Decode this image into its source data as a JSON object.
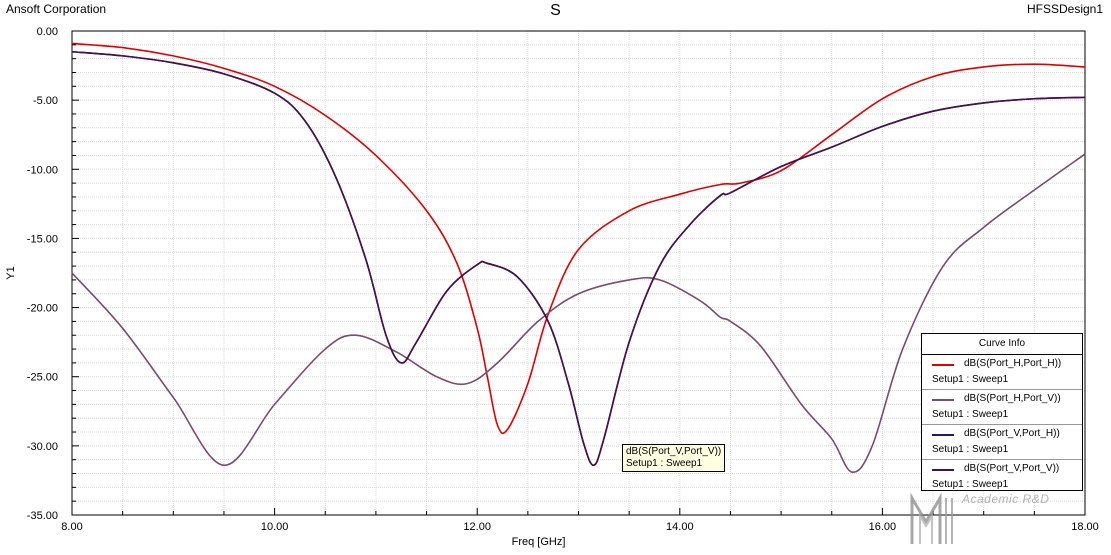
{
  "header": {
    "company": "Ansoft Corporation",
    "title": "S",
    "project": "HFSSDesign1"
  },
  "chart_data": {
    "type": "line",
    "title": "S",
    "xlabel": "Freq [GHz]",
    "ylabel": "Y1",
    "xlim": [
      8.0,
      18.0
    ],
    "ylim": [
      -35.0,
      0.0
    ],
    "x_ticks": [
      "8.00",
      "10.00",
      "12.00",
      "14.00",
      "16.00",
      "18.00"
    ],
    "y_ticks": [
      "0.00",
      "-5.00",
      "-10.00",
      "-15.00",
      "-20.00",
      "-25.00",
      "-30.00",
      "-35.00"
    ],
    "grid": true,
    "legend_placement": "bottom-right",
    "series": [
      {
        "name": "dB(S(Port_H,Port_H))",
        "setup": "Setup1 : Sweep1",
        "color": "#e00000",
        "x": [
          8.0,
          8.5,
          9.0,
          9.5,
          10.0,
          10.5,
          11.0,
          11.5,
          11.8,
          12.0,
          12.1,
          12.2,
          12.3,
          12.5,
          12.7,
          13.0,
          13.5,
          14.0,
          14.4,
          14.6,
          15.0,
          15.5,
          16.0,
          16.5,
          17.0,
          17.5,
          18.0
        ],
        "y": [
          -0.9,
          -1.2,
          -1.8,
          -2.7,
          -4.0,
          -6.1,
          -9.0,
          -13.0,
          -16.8,
          -21.5,
          -25.0,
          -28.5,
          -28.8,
          -25.5,
          -20.5,
          -15.8,
          -13.0,
          -11.8,
          -11.1,
          -11.0,
          -10.1,
          -7.5,
          -4.9,
          -3.3,
          -2.6,
          -2.4,
          -2.6
        ]
      },
      {
        "name": "dB(S(Port_H,Port_V))",
        "setup": "Setup1 : Sweep1",
        "color": "#7a4a6f",
        "x": [
          8.0,
          8.5,
          9.0,
          9.5,
          10.0,
          10.5,
          10.8,
          11.2,
          11.6,
          11.9,
          12.2,
          12.6,
          13.0,
          13.5,
          13.8,
          14.2,
          14.4,
          14.5,
          14.8,
          15.2,
          15.5,
          15.7,
          15.9,
          16.2,
          16.6,
          17.0,
          17.5,
          18.0
        ],
        "y": [
          -17.5,
          -21.5,
          -26.5,
          -31.4,
          -27.0,
          -23.0,
          -22.0,
          -23.2,
          -25.0,
          -25.5,
          -24.0,
          -21.0,
          -19.0,
          -18.0,
          -18.0,
          -19.5,
          -20.7,
          -21.0,
          -22.8,
          -27.0,
          -29.5,
          -31.9,
          -30.0,
          -23.0,
          -17.0,
          -14.2,
          -11.5,
          -8.9
        ]
      },
      {
        "name": "dB(S(Port_V,Port_H))",
        "setup": "Setup1 : Sweep1",
        "color": "#1a1a70",
        "x": [
          8.0,
          8.5,
          9.0,
          9.5,
          10.0,
          10.3,
          10.6,
          10.9,
          11.1,
          11.25,
          11.4,
          11.7,
          12.0,
          12.1,
          12.4,
          12.7,
          12.9,
          13.05,
          13.15,
          13.25,
          13.5,
          13.8,
          14.1,
          14.4,
          14.5,
          15.0,
          15.5,
          16.0,
          16.5,
          17.0,
          17.5,
          18.0
        ],
        "y": [
          -1.5,
          -1.8,
          -2.3,
          -3.1,
          -4.5,
          -6.5,
          -10.5,
          -16.5,
          -22.0,
          -24.0,
          -22.5,
          -18.8,
          -16.9,
          -16.8,
          -17.8,
          -21.0,
          -25.5,
          -29.8,
          -31.4,
          -29.5,
          -22.5,
          -17.0,
          -14.0,
          -11.9,
          -11.7,
          -9.8,
          -8.4,
          -6.9,
          -5.8,
          -5.2,
          -4.9,
          -4.8
        ]
      },
      {
        "name": "dB(S(Port_V,Port_V))",
        "setup": "Setup1 : Sweep1",
        "color": "#4a0f4a",
        "x": [
          8.0,
          8.5,
          9.0,
          9.5,
          10.0,
          10.3,
          10.6,
          10.9,
          11.1,
          11.25,
          11.4,
          11.7,
          12.0,
          12.1,
          12.4,
          12.7,
          12.9,
          13.05,
          13.15,
          13.25,
          13.5,
          13.8,
          14.1,
          14.4,
          14.5,
          15.0,
          15.5,
          16.0,
          16.5,
          17.0,
          17.5,
          18.0
        ],
        "y": [
          -1.5,
          -1.8,
          -2.3,
          -3.1,
          -4.5,
          -6.5,
          -10.5,
          -16.5,
          -22.0,
          -24.0,
          -22.5,
          -18.8,
          -16.9,
          -16.8,
          -17.8,
          -21.0,
          -25.5,
          -29.8,
          -31.4,
          -29.5,
          -22.5,
          -17.0,
          -14.0,
          -11.9,
          -11.7,
          -9.8,
          -8.4,
          -6.9,
          -5.8,
          -5.2,
          -4.9,
          -4.8
        ]
      }
    ]
  },
  "legend": {
    "title": "Curve Info"
  },
  "tooltip": {
    "line1": "dB(S(Port_V,Port_V))",
    "line2": "Setup1 : Sweep1"
  },
  "watermark": {
    "text": "Academic R&D"
  }
}
